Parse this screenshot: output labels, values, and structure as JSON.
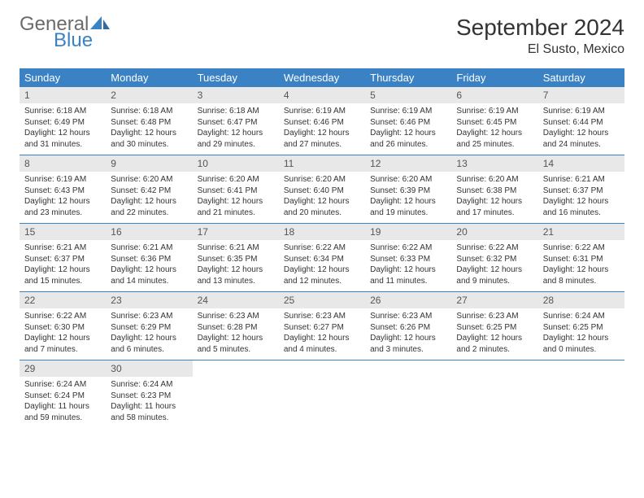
{
  "logo": {
    "text_general": "General",
    "text_blue": "Blue",
    "icon_color": "#3b82c4"
  },
  "title": "September 2024",
  "location": "El Susto, Mexico",
  "header_bg": "#3b82c4",
  "header_text_color": "#ffffff",
  "daynum_bg": "#e8e8e8",
  "border_color": "#3b82c4",
  "page_bg": "#ffffff",
  "day_names": [
    "Sunday",
    "Monday",
    "Tuesday",
    "Wednesday",
    "Thursday",
    "Friday",
    "Saturday"
  ],
  "weeks": [
    [
      {
        "n": "1",
        "sunrise": "Sunrise: 6:18 AM",
        "sunset": "Sunset: 6:49 PM",
        "daylight": "Daylight: 12 hours and 31 minutes."
      },
      {
        "n": "2",
        "sunrise": "Sunrise: 6:18 AM",
        "sunset": "Sunset: 6:48 PM",
        "daylight": "Daylight: 12 hours and 30 minutes."
      },
      {
        "n": "3",
        "sunrise": "Sunrise: 6:18 AM",
        "sunset": "Sunset: 6:47 PM",
        "daylight": "Daylight: 12 hours and 29 minutes."
      },
      {
        "n": "4",
        "sunrise": "Sunrise: 6:19 AM",
        "sunset": "Sunset: 6:46 PM",
        "daylight": "Daylight: 12 hours and 27 minutes."
      },
      {
        "n": "5",
        "sunrise": "Sunrise: 6:19 AM",
        "sunset": "Sunset: 6:46 PM",
        "daylight": "Daylight: 12 hours and 26 minutes."
      },
      {
        "n": "6",
        "sunrise": "Sunrise: 6:19 AM",
        "sunset": "Sunset: 6:45 PM",
        "daylight": "Daylight: 12 hours and 25 minutes."
      },
      {
        "n": "7",
        "sunrise": "Sunrise: 6:19 AM",
        "sunset": "Sunset: 6:44 PM",
        "daylight": "Daylight: 12 hours and 24 minutes."
      }
    ],
    [
      {
        "n": "8",
        "sunrise": "Sunrise: 6:19 AM",
        "sunset": "Sunset: 6:43 PM",
        "daylight": "Daylight: 12 hours and 23 minutes."
      },
      {
        "n": "9",
        "sunrise": "Sunrise: 6:20 AM",
        "sunset": "Sunset: 6:42 PM",
        "daylight": "Daylight: 12 hours and 22 minutes."
      },
      {
        "n": "10",
        "sunrise": "Sunrise: 6:20 AM",
        "sunset": "Sunset: 6:41 PM",
        "daylight": "Daylight: 12 hours and 21 minutes."
      },
      {
        "n": "11",
        "sunrise": "Sunrise: 6:20 AM",
        "sunset": "Sunset: 6:40 PM",
        "daylight": "Daylight: 12 hours and 20 minutes."
      },
      {
        "n": "12",
        "sunrise": "Sunrise: 6:20 AM",
        "sunset": "Sunset: 6:39 PM",
        "daylight": "Daylight: 12 hours and 19 minutes."
      },
      {
        "n": "13",
        "sunrise": "Sunrise: 6:20 AM",
        "sunset": "Sunset: 6:38 PM",
        "daylight": "Daylight: 12 hours and 17 minutes."
      },
      {
        "n": "14",
        "sunrise": "Sunrise: 6:21 AM",
        "sunset": "Sunset: 6:37 PM",
        "daylight": "Daylight: 12 hours and 16 minutes."
      }
    ],
    [
      {
        "n": "15",
        "sunrise": "Sunrise: 6:21 AM",
        "sunset": "Sunset: 6:37 PM",
        "daylight": "Daylight: 12 hours and 15 minutes."
      },
      {
        "n": "16",
        "sunrise": "Sunrise: 6:21 AM",
        "sunset": "Sunset: 6:36 PM",
        "daylight": "Daylight: 12 hours and 14 minutes."
      },
      {
        "n": "17",
        "sunrise": "Sunrise: 6:21 AM",
        "sunset": "Sunset: 6:35 PM",
        "daylight": "Daylight: 12 hours and 13 minutes."
      },
      {
        "n": "18",
        "sunrise": "Sunrise: 6:22 AM",
        "sunset": "Sunset: 6:34 PM",
        "daylight": "Daylight: 12 hours and 12 minutes."
      },
      {
        "n": "19",
        "sunrise": "Sunrise: 6:22 AM",
        "sunset": "Sunset: 6:33 PM",
        "daylight": "Daylight: 12 hours and 11 minutes."
      },
      {
        "n": "20",
        "sunrise": "Sunrise: 6:22 AM",
        "sunset": "Sunset: 6:32 PM",
        "daylight": "Daylight: 12 hours and 9 minutes."
      },
      {
        "n": "21",
        "sunrise": "Sunrise: 6:22 AM",
        "sunset": "Sunset: 6:31 PM",
        "daylight": "Daylight: 12 hours and 8 minutes."
      }
    ],
    [
      {
        "n": "22",
        "sunrise": "Sunrise: 6:22 AM",
        "sunset": "Sunset: 6:30 PM",
        "daylight": "Daylight: 12 hours and 7 minutes."
      },
      {
        "n": "23",
        "sunrise": "Sunrise: 6:23 AM",
        "sunset": "Sunset: 6:29 PM",
        "daylight": "Daylight: 12 hours and 6 minutes."
      },
      {
        "n": "24",
        "sunrise": "Sunrise: 6:23 AM",
        "sunset": "Sunset: 6:28 PM",
        "daylight": "Daylight: 12 hours and 5 minutes."
      },
      {
        "n": "25",
        "sunrise": "Sunrise: 6:23 AM",
        "sunset": "Sunset: 6:27 PM",
        "daylight": "Daylight: 12 hours and 4 minutes."
      },
      {
        "n": "26",
        "sunrise": "Sunrise: 6:23 AM",
        "sunset": "Sunset: 6:26 PM",
        "daylight": "Daylight: 12 hours and 3 minutes."
      },
      {
        "n": "27",
        "sunrise": "Sunrise: 6:23 AM",
        "sunset": "Sunset: 6:25 PM",
        "daylight": "Daylight: 12 hours and 2 minutes."
      },
      {
        "n": "28",
        "sunrise": "Sunrise: 6:24 AM",
        "sunset": "Sunset: 6:25 PM",
        "daylight": "Daylight: 12 hours and 0 minutes."
      }
    ],
    [
      {
        "n": "29",
        "sunrise": "Sunrise: 6:24 AM",
        "sunset": "Sunset: 6:24 PM",
        "daylight": "Daylight: 11 hours and 59 minutes."
      },
      {
        "n": "30",
        "sunrise": "Sunrise: 6:24 AM",
        "sunset": "Sunset: 6:23 PM",
        "daylight": "Daylight: 11 hours and 58 minutes."
      },
      null,
      null,
      null,
      null,
      null
    ]
  ]
}
